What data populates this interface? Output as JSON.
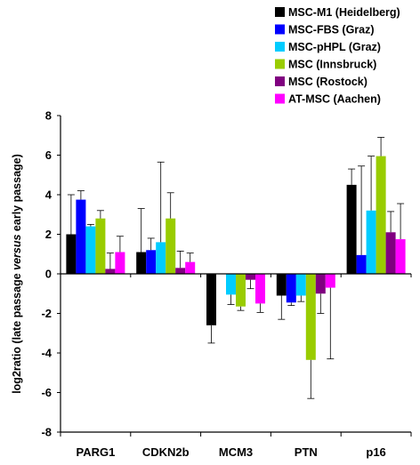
{
  "chart_data": {
    "type": "bar",
    "title": "",
    "xlabel": "",
    "ylabel": {
      "prefix": "log2ratio (late passage ",
      "italic": "versus",
      "suffix": " early passage)"
    },
    "ylim": [
      -8,
      8
    ],
    "yticks": [
      "-8",
      "-6",
      "-4",
      "-2",
      "0",
      "2",
      "4",
      "6",
      "8"
    ],
    "categories": [
      "PARG1",
      "CDKN2b",
      "MCM3",
      "PTN",
      "p16"
    ],
    "legend_position": "top-right",
    "grid": false,
    "series": [
      {
        "name": "MSC-M1 (Heidelberg)",
        "color": "#000000",
        "values": [
          2.0,
          1.1,
          -2.6,
          -1.1,
          4.5
        ],
        "errors": [
          2.0,
          2.2,
          0.9,
          1.2,
          0.8
        ]
      },
      {
        "name": "MSC-FBS (Graz)",
        "color": "#0000ff",
        "values": [
          3.75,
          1.2,
          0.0,
          -1.45,
          0.95
        ],
        "errors": [
          0.45,
          0.6,
          0.0,
          0.15,
          4.5
        ]
      },
      {
        "name": "MSC-pHPL (Graz)",
        "color": "#00ccff",
        "values": [
          2.4,
          1.6,
          -1.05,
          -1.1,
          3.2
        ],
        "errors": [
          0.1,
          4.05,
          0.5,
          0.3,
          2.75
        ]
      },
      {
        "name": "MSC (Innsbruck)",
        "color": "#99cc00",
        "values": [
          2.8,
          2.8,
          -1.65,
          -4.35,
          5.95
        ],
        "errors": [
          0.4,
          1.3,
          0.2,
          1.95,
          0.95
        ]
      },
      {
        "name": "MSC (Rostock)",
        "color": "#800080",
        "values": [
          0.25,
          0.3,
          -0.3,
          -1.0,
          2.1
        ],
        "errors": [
          0.8,
          0.85,
          0.45,
          1.0,
          1.05
        ]
      },
      {
        "name": "AT-MSC (Aachen)",
        "color": "#ff00ff",
        "values": [
          1.1,
          0.6,
          -1.5,
          -0.7,
          1.75
        ],
        "errors": [
          0.8,
          0.45,
          0.45,
          3.6,
          1.8
        ]
      }
    ]
  }
}
